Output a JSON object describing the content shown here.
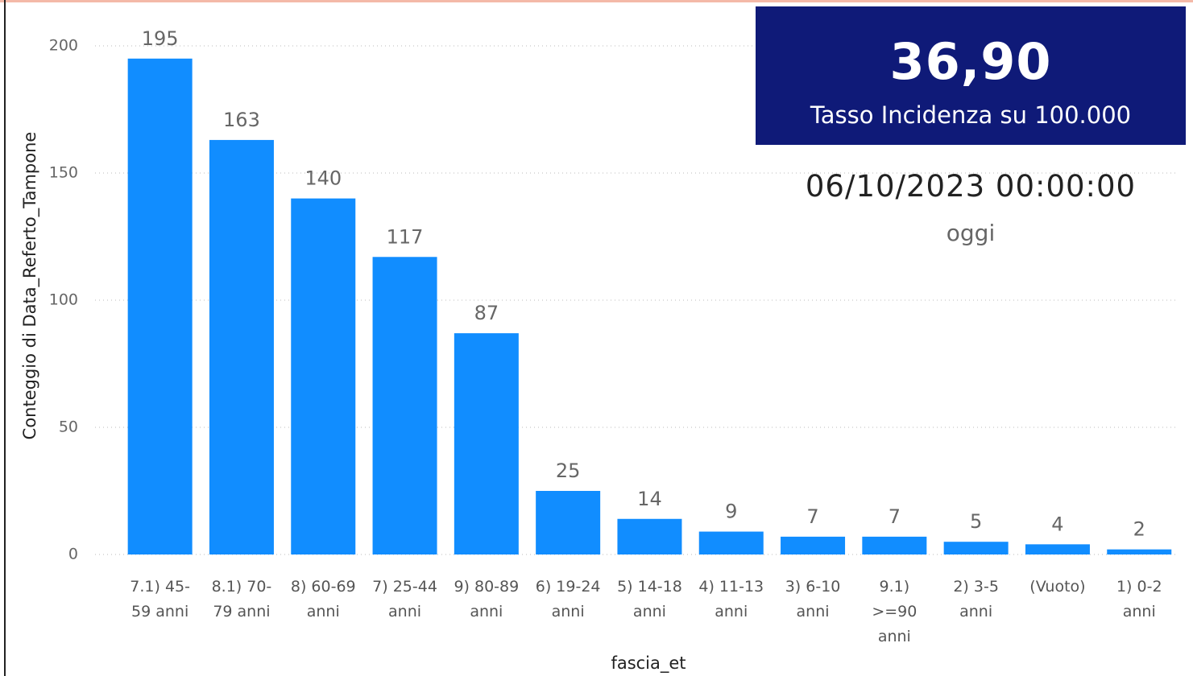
{
  "chart_data": {
    "type": "bar",
    "categories": [
      "7.1) 45-59 anni",
      "8.1) 70-79 anni",
      "8) 60-69 anni",
      "7) 25-44 anni",
      "9) 80-89 anni",
      "6) 19-24 anni",
      "5) 14-18 anni",
      "4) 11-13 anni",
      "3) 6-10 anni",
      "9.1) >=90 anni",
      "2) 3-5 anni",
      "(Vuoto)",
      "1) 0-2 anni"
    ],
    "values": [
      195,
      163,
      140,
      117,
      87,
      25,
      14,
      9,
      7,
      7,
      5,
      4,
      2
    ],
    "color": "#118dff",
    "xlabel": "fascia_et",
    "ylabel": "Conteggio di Data_Referto_Tampone",
    "ylim": [
      0,
      200
    ],
    "yticks": [
      0,
      50,
      100,
      150,
      200
    ],
    "grid": true
  },
  "cards": [
    {
      "value": "36,90",
      "label": "Tasso Incidenza su 100.000"
    },
    {
      "value": "06/10/2023 00:00:00",
      "label": "oggi"
    }
  ]
}
